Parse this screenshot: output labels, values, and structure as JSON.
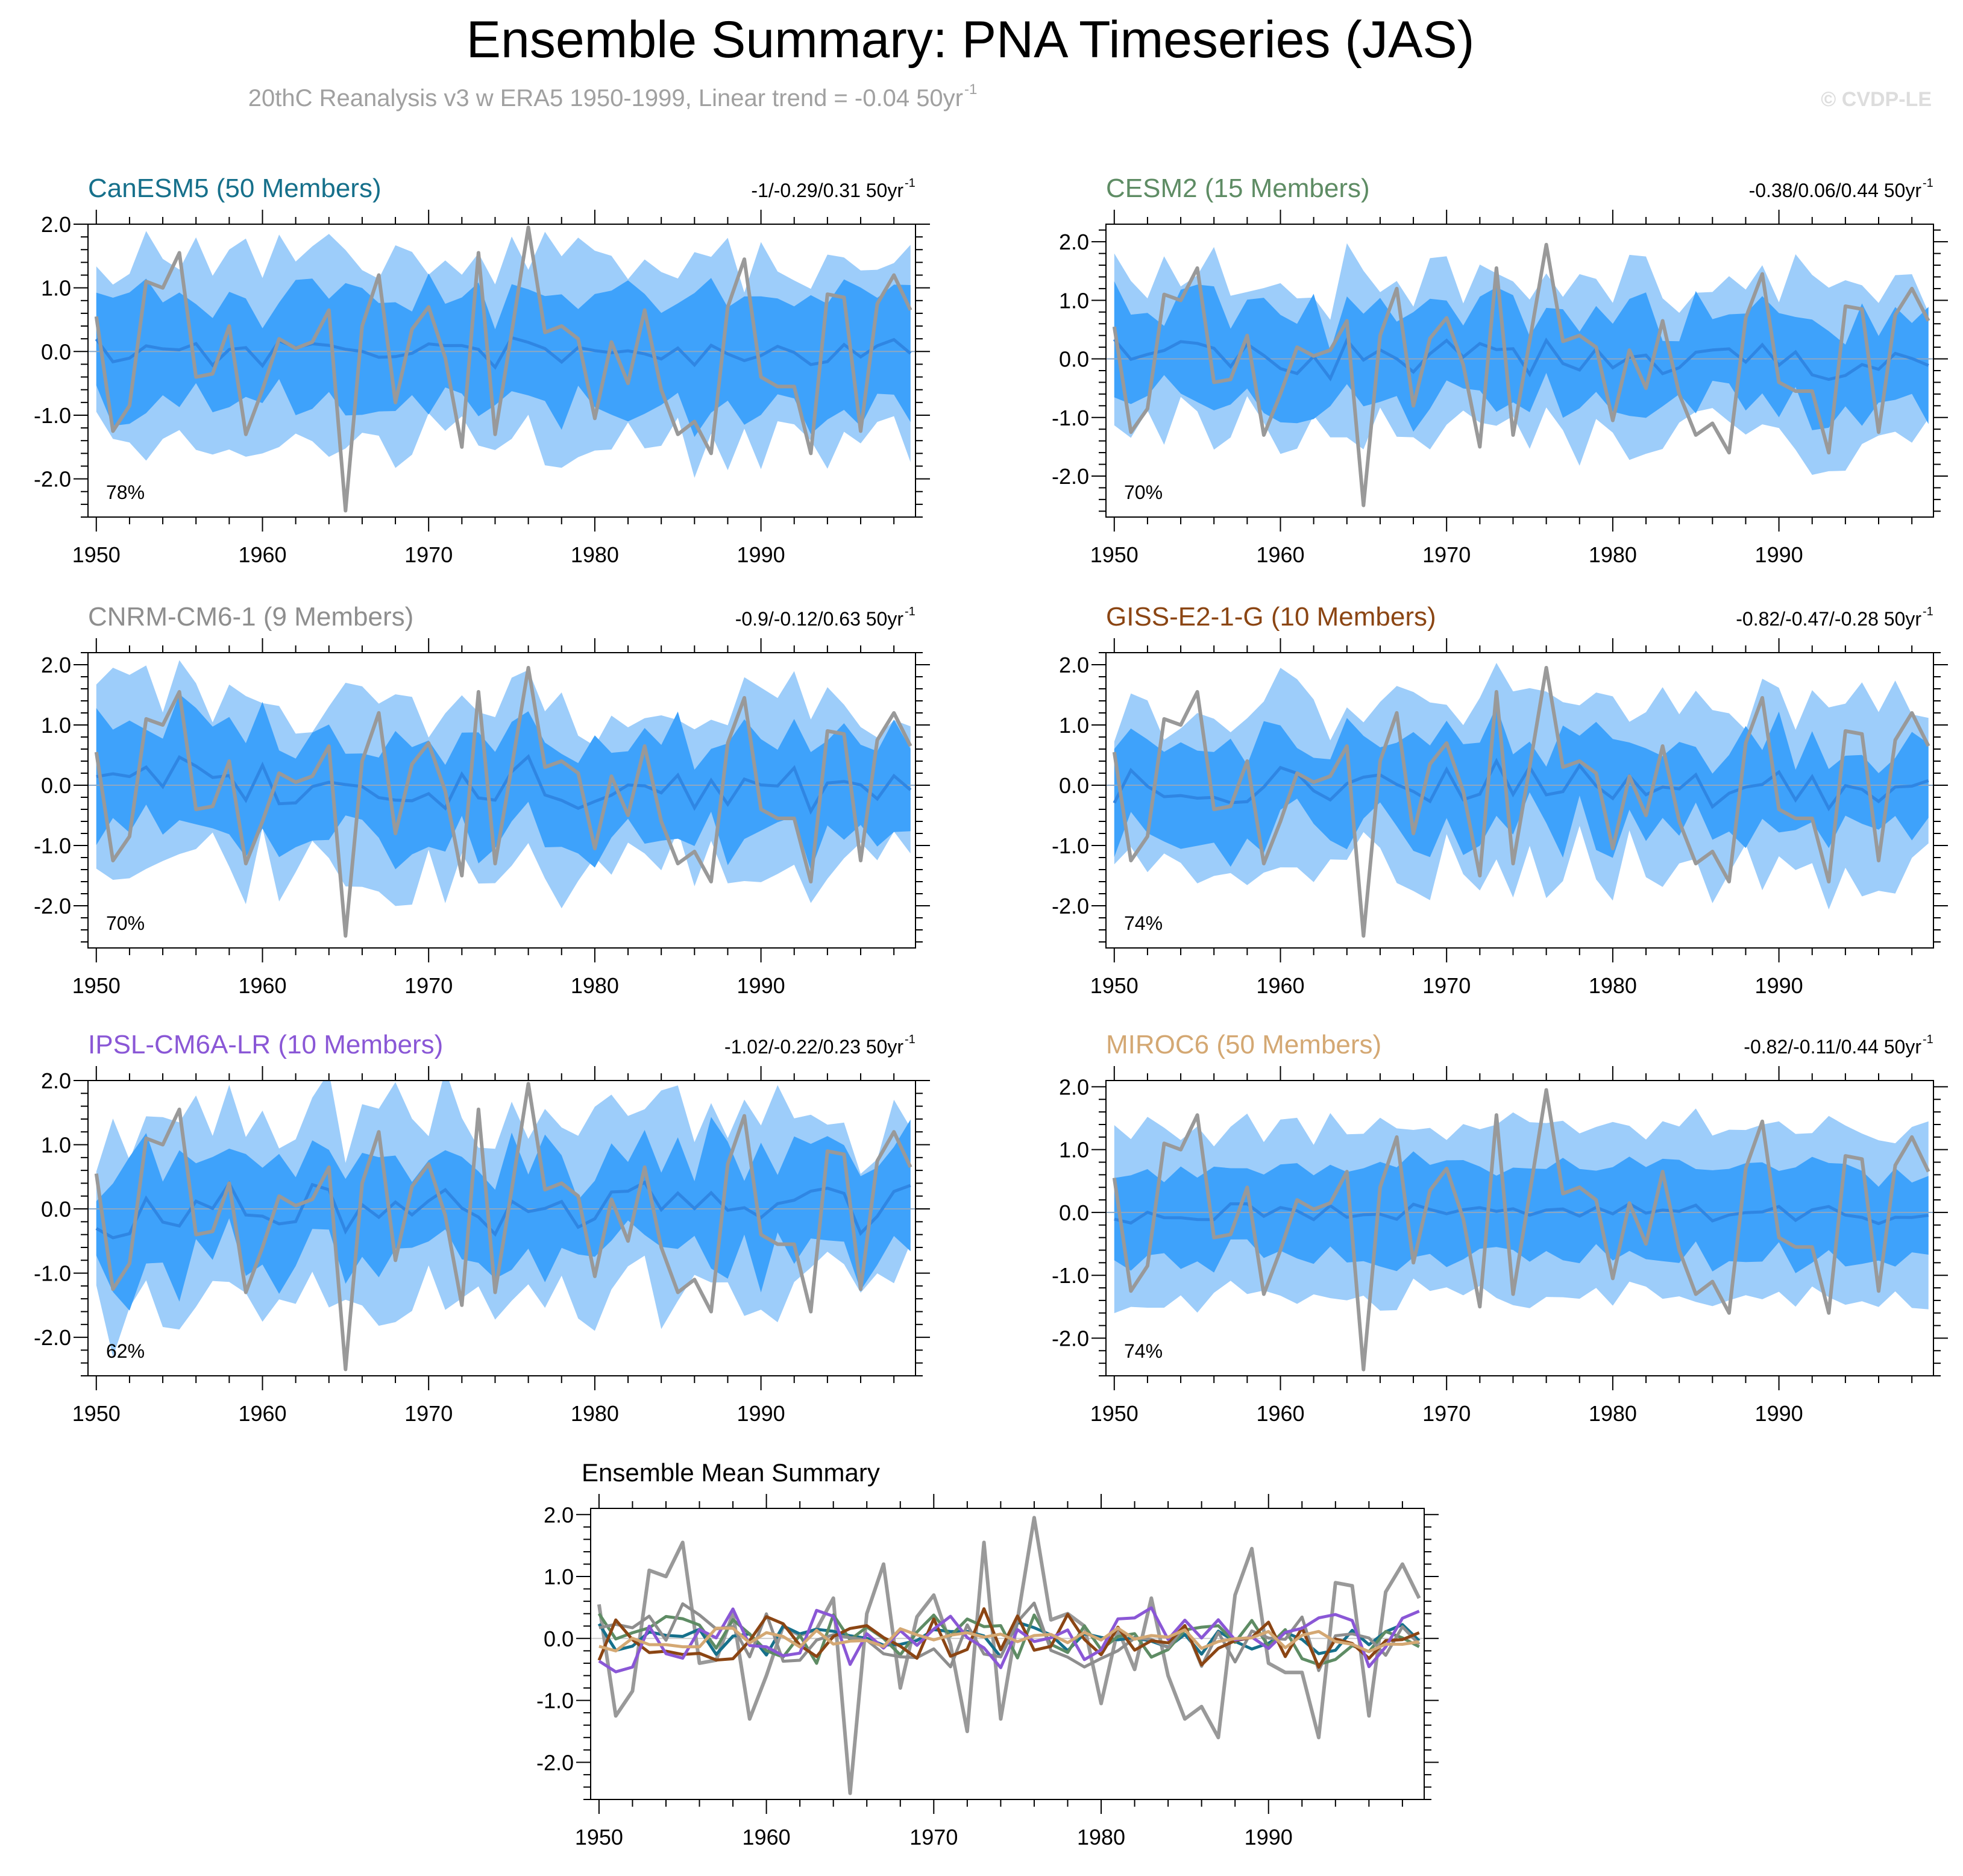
{
  "figure": {
    "title": "Ensemble Summary: PNA Timeseries (JAS)",
    "subtitle": "20thC Reanalysis v3 w ERA5 1950-1999, Linear trend = -0.04 50yr",
    "subtitle_sup": "-1",
    "watermark": "© CVDP-LE",
    "colors": {
      "outer_band": "#9dcdfa",
      "inner_band": "#3ea2fb",
      "ensemble_mean": "#2f86e3",
      "observation": "#999999"
    }
  },
  "chart_data": [
    {
      "type": "line",
      "id": "canesm5",
      "title": "CanESM5 (50 Members)",
      "title_color": "#16708b",
      "trend": "-1/-0.29/0.31 50yr",
      "trend_sup": "-1",
      "percent": "78%",
      "xlim": [
        1949.5,
        1999.3
      ],
      "ylim": [
        -2.6,
        2.0
      ],
      "yticks": [
        2.0,
        1.0,
        0.0,
        -1.0,
        -2.0
      ],
      "ytick_labels": [
        "2.0",
        "1.0",
        "0.0",
        "-1.0",
        "-2.0"
      ],
      "xticks": [
        1950,
        1960,
        1970,
        1980,
        1990
      ],
      "xtick_labels": [
        "1950",
        "1960",
        "1970",
        "1980",
        "1990"
      ],
      "seed": 11,
      "mean_amp": 0.22,
      "inner_half": 0.85,
      "outer_half": 1.45,
      "band_var": 0.3
    },
    {
      "type": "line",
      "id": "cesm2",
      "title": "CESM2 (15 Members)",
      "title_color": "#5e8c64",
      "trend": "-0.38/0.06/0.44 50yr",
      "trend_sup": "-1",
      "percent": "70%",
      "xlim": [
        1949.5,
        1999.3
      ],
      "ylim": [
        -2.7,
        2.3
      ],
      "yticks": [
        2.0,
        1.0,
        0.0,
        -1.0,
        -2.0
      ],
      "ytick_labels": [
        "2.0",
        "1.0",
        "0.0",
        "-1.0",
        "-2.0"
      ],
      "xticks": [
        1950,
        1960,
        1970,
        1980,
        1990
      ],
      "xtick_labels": [
        "1950",
        "1960",
        "1970",
        "1980",
        "1990"
      ],
      "seed": 23,
      "mean_amp": 0.35,
      "inner_half": 0.75,
      "outer_half": 1.3,
      "band_var": 0.35
    },
    {
      "type": "line",
      "id": "cnrm",
      "title": "CNRM-CM6-1 (9 Members)",
      "title_color": "#8e8e8e",
      "trend": "-0.9/-0.12/0.63 50yr",
      "trend_sup": "-1",
      "percent": "70%",
      "xlim": [
        1949.5,
        1999.3
      ],
      "ylim": [
        -2.7,
        2.2
      ],
      "yticks": [
        2.0,
        1.0,
        0.0,
        -1.0,
        -2.0
      ],
      "ytick_labels": [
        "2.0",
        "1.0",
        "0.0",
        "-1.0",
        "-2.0"
      ],
      "xticks": [
        1950,
        1960,
        1970,
        1980,
        1990
      ],
      "xtick_labels": [
        "1950",
        "1960",
        "1970",
        "1980",
        "1990"
      ],
      "seed": 37,
      "mean_amp": 0.4,
      "inner_half": 0.8,
      "outer_half": 1.35,
      "band_var": 0.35
    },
    {
      "type": "line",
      "id": "giss",
      "title": "GISS-E2-1-G (10 Members)",
      "title_color": "#8b4513",
      "trend": "-0.82/-0.47/-0.28 50yr",
      "trend_sup": "-1",
      "percent": "74%",
      "xlim": [
        1949.5,
        1999.3
      ],
      "ylim": [
        -2.7,
        2.2
      ],
      "yticks": [
        2.0,
        1.0,
        0.0,
        -1.0,
        -2.0
      ],
      "ytick_labels": [
        "2.0",
        "1.0",
        "0.0",
        "-1.0",
        "-2.0"
      ],
      "xticks": [
        1950,
        1960,
        1970,
        1980,
        1990
      ],
      "xtick_labels": [
        "1950",
        "1960",
        "1970",
        "1980",
        "1990"
      ],
      "seed": 53,
      "mean_amp": 0.33,
      "inner_half": 0.75,
      "outer_half": 1.35,
      "band_var": 0.35
    },
    {
      "type": "line",
      "id": "ipsl",
      "title": "IPSL-CM6A-LR (10 Members)",
      "title_color": "#8a57d6",
      "trend": "-1.02/-0.22/0.23 50yr",
      "trend_sup": "-1",
      "percent": "62%",
      "xlim": [
        1949.5,
        1999.3
      ],
      "ylim": [
        -2.6,
        2.0
      ],
      "yticks": [
        2.0,
        1.0,
        0.0,
        -1.0,
        -2.0
      ],
      "ytick_labels": [
        "2.0",
        "1.0",
        "0.0",
        "-1.0",
        "-2.0"
      ],
      "xticks": [
        1950,
        1960,
        1970,
        1980,
        1990
      ],
      "xtick_labels": [
        "1950",
        "1960",
        "1970",
        "1980",
        "1990"
      ],
      "seed": 71,
      "mean_amp": 0.38,
      "inner_half": 0.8,
      "outer_half": 1.4,
      "band_var": 0.4
    },
    {
      "type": "line",
      "id": "miroc6",
      "title": "MIROC6 (50 Members)",
      "title_color": "#d4a873",
      "trend": "-0.82/-0.11/0.44 50yr",
      "trend_sup": "-1",
      "percent": "74%",
      "xlim": [
        1949.5,
        1999.3
      ],
      "ylim": [
        -2.6,
        2.1
      ],
      "yticks": [
        2.0,
        1.0,
        0.0,
        -1.0,
        -2.0
      ],
      "ytick_labels": [
        "2.0",
        "1.0",
        "0.0",
        "-1.0",
        "-2.0"
      ],
      "xticks": [
        1950,
        1960,
        1970,
        1980,
        1990
      ],
      "xtick_labels": [
        "1950",
        "1960",
        "1970",
        "1980",
        "1990"
      ],
      "seed": 89,
      "mean_amp": 0.15,
      "inner_half": 0.7,
      "outer_half": 1.35,
      "band_var": 0.15
    },
    {
      "type": "line",
      "id": "ensemble-mean-summary",
      "title": "Ensemble Mean Summary",
      "title_color": "#000000",
      "xlim": [
        1949.5,
        1999.3
      ],
      "ylim": [
        -2.6,
        2.1
      ],
      "yticks": [
        2.0,
        1.0,
        0.0,
        -1.0,
        -2.0
      ],
      "ytick_labels": [
        "2.0",
        "1.0",
        "0.0",
        "-1.0",
        "-2.0"
      ],
      "xticks": [
        1950,
        1960,
        1970,
        1980,
        1990
      ],
      "xtick_labels": [
        "1950",
        "1960",
        "1970",
        "1980",
        "1990"
      ]
    }
  ],
  "observation": {
    "name": "20thC Reanalysis v3 w ERA5",
    "color": "#999999",
    "years": [
      1950,
      1951,
      1952,
      1953,
      1954,
      1955,
      1956,
      1957,
      1958,
      1959,
      1960,
      1961,
      1962,
      1963,
      1964,
      1965,
      1966,
      1967,
      1968,
      1969,
      1970,
      1971,
      1972,
      1973,
      1974,
      1975,
      1976,
      1977,
      1978,
      1979,
      1980,
      1981,
      1982,
      1983,
      1984,
      1985,
      1986,
      1987,
      1988,
      1989,
      1990,
      1991,
      1992,
      1993,
      1994,
      1995,
      1996,
      1997,
      1998,
      1999
    ],
    "values": [
      0.55,
      -1.25,
      -0.85,
      1.1,
      1.0,
      1.55,
      -0.4,
      -0.35,
      0.4,
      -1.3,
      -0.6,
      0.2,
      0.05,
      0.15,
      0.65,
      -2.5,
      0.4,
      1.2,
      -0.8,
      0.35,
      0.7,
      -0.1,
      -1.5,
      1.55,
      -1.3,
      0.3,
      1.95,
      0.3,
      0.4,
      0.2,
      -1.05,
      0.15,
      -0.5,
      0.65,
      -0.6,
      -1.3,
      -1.1,
      -1.6,
      0.7,
      1.45,
      -0.4,
      -0.55,
      -0.55,
      -1.6,
      0.9,
      0.85,
      -1.25,
      0.75,
      1.2,
      0.65
    ]
  }
}
